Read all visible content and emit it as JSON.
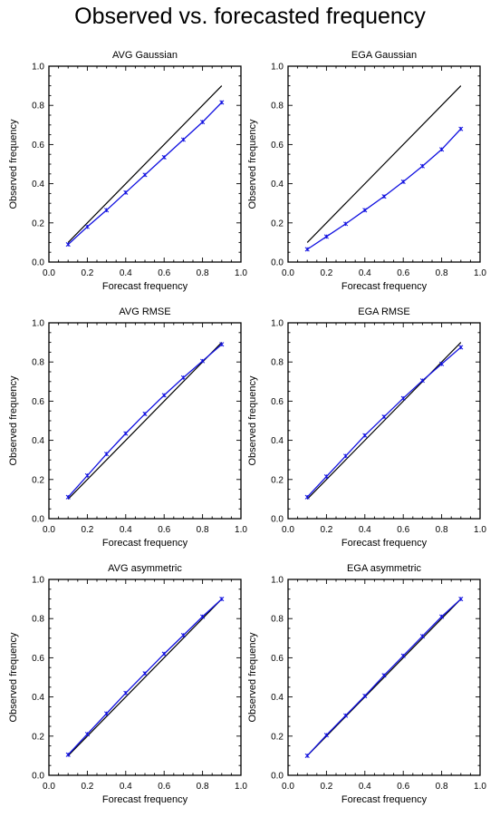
{
  "page": {
    "title": "Observed vs. forecasted frequency"
  },
  "chart_data": [
    {
      "type": "line",
      "title": "AVG Gaussian",
      "xlabel": "Forecast frequency",
      "ylabel": "Observed frequency",
      "xlim": [
        0,
        1
      ],
      "ylim": [
        0,
        1
      ],
      "xticks": [
        "0.0",
        "0.2",
        "0.4",
        "0.6",
        "0.8",
        "1.0"
      ],
      "yticks": [
        "0.0",
        "0.2",
        "0.4",
        "0.6",
        "0.8",
        "1.0"
      ],
      "series": [
        {
          "color": "#000000",
          "x": [
            0.1,
            0.9
          ],
          "y": [
            0.1,
            0.9
          ],
          "markers": false
        },
        {
          "color": "#1010e0",
          "x": [
            0.1,
            0.2,
            0.3,
            0.4,
            0.5,
            0.6,
            0.7,
            0.8,
            0.9
          ],
          "y": [
            0.09,
            0.18,
            0.265,
            0.355,
            0.445,
            0.535,
            0.625,
            0.715,
            0.815
          ],
          "markers": true
        }
      ]
    },
    {
      "type": "line",
      "title": "EGA Gaussian",
      "xlabel": "Forecast frequency",
      "ylabel": "Observed frequency",
      "xlim": [
        0,
        1
      ],
      "ylim": [
        0,
        1
      ],
      "xticks": [
        "0.0",
        "0.2",
        "0.4",
        "0.6",
        "0.8",
        "1.0"
      ],
      "yticks": [
        "0.0",
        "0.2",
        "0.4",
        "0.6",
        "0.8",
        "1.0"
      ],
      "series": [
        {
          "color": "#000000",
          "x": [
            0.1,
            0.9
          ],
          "y": [
            0.1,
            0.9
          ],
          "markers": false
        },
        {
          "color": "#1010e0",
          "x": [
            0.1,
            0.2,
            0.3,
            0.4,
            0.5,
            0.6,
            0.7,
            0.8,
            0.9
          ],
          "y": [
            0.065,
            0.13,
            0.195,
            0.265,
            0.335,
            0.41,
            0.49,
            0.575,
            0.68
          ],
          "markers": true
        }
      ]
    },
    {
      "type": "line",
      "title": "AVG RMSE",
      "xlabel": "Forecast frequency",
      "ylabel": "Observed frequency",
      "xlim": [
        0,
        1
      ],
      "ylim": [
        0,
        1
      ],
      "xticks": [
        "0.0",
        "0.2",
        "0.4",
        "0.6",
        "0.8",
        "1.0"
      ],
      "yticks": [
        "0.0",
        "0.2",
        "0.4",
        "0.6",
        "0.8",
        "1.0"
      ],
      "series": [
        {
          "color": "#000000",
          "x": [
            0.1,
            0.9
          ],
          "y": [
            0.1,
            0.9
          ],
          "markers": false
        },
        {
          "color": "#1010e0",
          "x": [
            0.1,
            0.2,
            0.3,
            0.4,
            0.5,
            0.6,
            0.7,
            0.8,
            0.9
          ],
          "y": [
            0.11,
            0.22,
            0.33,
            0.435,
            0.535,
            0.63,
            0.72,
            0.805,
            0.89
          ],
          "markers": true
        }
      ]
    },
    {
      "type": "line",
      "title": "EGA RMSE",
      "xlabel": "Forecast frequency",
      "ylabel": "Observed frequency",
      "xlim": [
        0,
        1
      ],
      "ylim": [
        0,
        1
      ],
      "xticks": [
        "0.0",
        "0.2",
        "0.4",
        "0.6",
        "0.8",
        "1.0"
      ],
      "yticks": [
        "0.0",
        "0.2",
        "0.4",
        "0.6",
        "0.8",
        "1.0"
      ],
      "series": [
        {
          "color": "#000000",
          "x": [
            0.1,
            0.9
          ],
          "y": [
            0.1,
            0.9
          ],
          "markers": false
        },
        {
          "color": "#1010e0",
          "x": [
            0.1,
            0.2,
            0.3,
            0.4,
            0.5,
            0.6,
            0.7,
            0.8,
            0.9
          ],
          "y": [
            0.11,
            0.215,
            0.32,
            0.425,
            0.52,
            0.615,
            0.705,
            0.79,
            0.875
          ],
          "markers": true
        }
      ]
    },
    {
      "type": "line",
      "title": "AVG asymmetric",
      "xlabel": "Forecast frequency",
      "ylabel": "Observed frequency",
      "xlim": [
        0,
        1
      ],
      "ylim": [
        0,
        1
      ],
      "xticks": [
        "0.0",
        "0.2",
        "0.4",
        "0.6",
        "0.8",
        "1.0"
      ],
      "yticks": [
        "0.0",
        "0.2",
        "0.4",
        "0.6",
        "0.8",
        "1.0"
      ],
      "series": [
        {
          "color": "#000000",
          "x": [
            0.1,
            0.9
          ],
          "y": [
            0.1,
            0.9
          ],
          "markers": false
        },
        {
          "color": "#1010e0",
          "x": [
            0.1,
            0.2,
            0.3,
            0.4,
            0.5,
            0.6,
            0.7,
            0.8,
            0.9
          ],
          "y": [
            0.105,
            0.21,
            0.315,
            0.42,
            0.52,
            0.62,
            0.715,
            0.81,
            0.9
          ],
          "markers": true
        }
      ]
    },
    {
      "type": "line",
      "title": "EGA asymmetric",
      "xlabel": "Forecast frequency",
      "ylabel": "Observed frequency",
      "xlim": [
        0,
        1
      ],
      "ylim": [
        0,
        1
      ],
      "xticks": [
        "0.0",
        "0.2",
        "0.4",
        "0.6",
        "0.8",
        "1.0"
      ],
      "yticks": [
        "0.0",
        "0.2",
        "0.4",
        "0.6",
        "0.8",
        "1.0"
      ],
      "series": [
        {
          "color": "#000000",
          "x": [
            0.1,
            0.9
          ],
          "y": [
            0.1,
            0.9
          ],
          "markers": false
        },
        {
          "color": "#1010e0",
          "x": [
            0.1,
            0.2,
            0.3,
            0.4,
            0.5,
            0.6,
            0.7,
            0.8,
            0.9
          ],
          "y": [
            0.1,
            0.205,
            0.305,
            0.405,
            0.51,
            0.61,
            0.71,
            0.81,
            0.9
          ],
          "markers": true
        }
      ]
    }
  ]
}
